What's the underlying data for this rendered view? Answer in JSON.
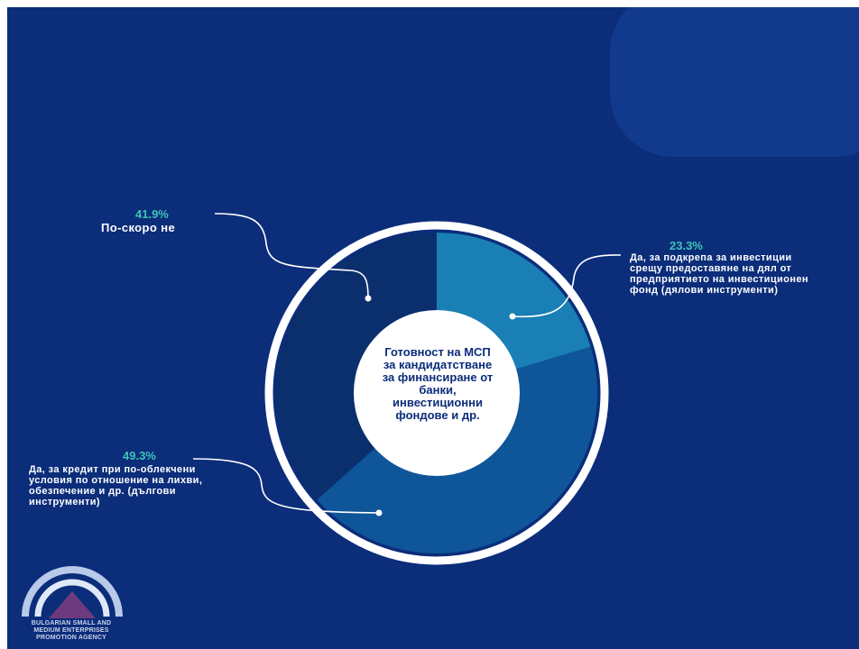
{
  "chart_data": {
    "type": "pie",
    "donut": true,
    "center_label": "Готовност на МСП за кандидатстване за финансиране от банки, инвестиционни фондове и др.",
    "slices": [
      {
        "label": "Да, за подкрепа за инвестиции срещу предоставяне на дял от предприятието на инвестиционен фонд (дялови инструменти)",
        "value": 23.3,
        "value_label": "23.3%",
        "color": "#1a7fb5"
      },
      {
        "label": "Да, за кредит при по-облекчени условия по отношение на лихви, обезпечение и др. (дългови инструменти)",
        "value": 49.3,
        "value_label": "49.3%",
        "color": "#0f5599"
      },
      {
        "label": "По-скоро не",
        "value": 41.9,
        "value_label": "41.9%",
        "color": "#0b2f6d"
      }
    ]
  },
  "texts": {
    "center": [
      "Готовност на МСП",
      "за кандидатстване",
      "за финансиране от",
      "банки,",
      "инвестиционни",
      "фондове и др."
    ],
    "label_equity": [
      "Да, за подкрепа за инвестиции",
      "срещу предоставяне на дял от",
      "предприятието на инвестиционен",
      "фонд (дялови инструменти)"
    ],
    "label_debt": [
      "Да, за кредит при по-облекчени",
      "условия по отношение на лихви,",
      "обезпечение и др. (дългови",
      "инструменти)"
    ],
    "label_no": [
      "По-скоро не"
    ]
  },
  "logo": {
    "text": [
      "BULGARIAN SMALL AND",
      "MEDIUM ENTERPRISES",
      "PROMOTION AGENCY"
    ]
  },
  "colors": {
    "background": "#0b2d7a",
    "accent": "#3ec4b7",
    "ring": "#ffffff"
  }
}
